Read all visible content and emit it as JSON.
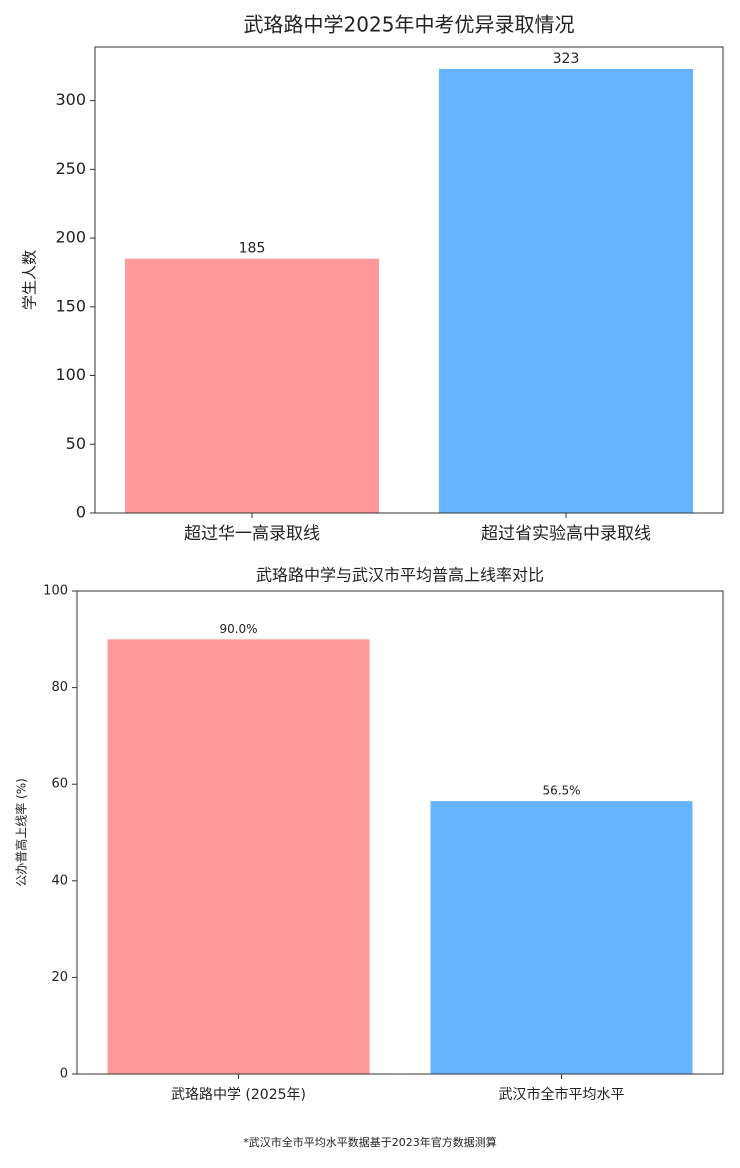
{
  "chart_data": [
    {
      "type": "bar",
      "title": "武珞路中学2025年中考优异录取情况",
      "ylabel": "学生人数",
      "categories": [
        "超过华一高录取线",
        "超过省实验高中录取线"
      ],
      "values": [
        185,
        323
      ],
      "colors": [
        "#ff9999",
        "#66b3ff"
      ],
      "ylim": [
        0,
        339
      ],
      "yticks": [
        0,
        50,
        100,
        150,
        200,
        250,
        300
      ],
      "grid": false
    },
    {
      "type": "bar",
      "title": "武珞路中学与武汉市平均普高上线率对比",
      "ylabel": "公办普高上线率 (%)",
      "categories": [
        "武珞路中学 (2025年)",
        "武汉市全市平均水平"
      ],
      "values": [
        90.0,
        56.5
      ],
      "value_labels": [
        "90.0%",
        "56.5%"
      ],
      "colors": [
        "#ff9999",
        "#66b3ff"
      ],
      "ylim": [
        0,
        100
      ],
      "yticks": [
        0,
        20,
        40,
        60,
        80,
        100
      ],
      "grid": false
    }
  ],
  "footnote": "*武汉市全市平均水平数据基于2023年官方数据测算"
}
